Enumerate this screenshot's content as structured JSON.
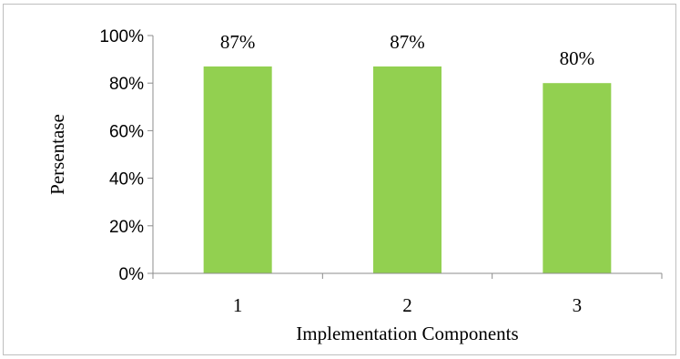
{
  "chart_data": {
    "type": "bar",
    "categories": [
      "1",
      "2",
      "3"
    ],
    "values": [
      87,
      87,
      80
    ],
    "data_labels": [
      "87%",
      "87%",
      "80%"
    ],
    "xlabel": "Implementation Components",
    "ylabel": "Persentase",
    "ylim": [
      0,
      100
    ],
    "yticks": [
      "0%",
      "20%",
      "40%",
      "60%",
      "80%",
      "100%"
    ],
    "bar_color": "#92d050",
    "grid": false,
    "legend": "none"
  }
}
